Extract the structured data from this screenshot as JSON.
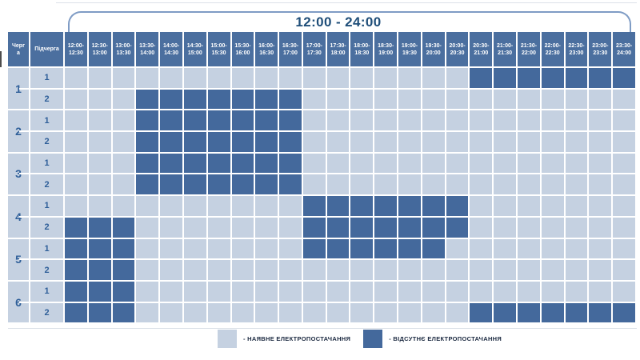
{
  "table": {
    "queue_header": "Черга",
    "subqueue_header": "Підчерга"
  },
  "legend": {
    "available_label": "- НАЯВНЕ ЕЛЕКТРОПОСТАЧАННЯ",
    "outage_label": "- ВІДСУТНЄ ЕЛЕКТРОПОСТАЧАННЯ"
  },
  "colors": {
    "available": "#c5d1e1",
    "outage": "#44699c",
    "header_bg": "#4b6f9f",
    "header_text": "#ffffff",
    "label_text": "#2f5f99",
    "title_text": "#1f4e79",
    "bracket_line": "#7f9cc5",
    "legend_text": "#1b2940"
  },
  "chart_data": {
    "type": "heatmap",
    "title": "12:00 - 24:00",
    "x_categories": [
      "12:00-12:30",
      "12:30-13:00",
      "13:00-13:30",
      "13:30-14:00",
      "14:00-14:30",
      "14:30-15:00",
      "15:00-15:30",
      "15:30-16:00",
      "16:00-16:30",
      "16:30-17:00",
      "17:00-17:30",
      "17:30-18:00",
      "18:00-18:30",
      "18:30-19:00",
      "19:00-19:30",
      "19:30-20:00",
      "20:00-20:30",
      "20:30-21:00",
      "21:00-21:30",
      "21:30-22:00",
      "22:00-22:30",
      "22:30-23:00",
      "23:00-23:30",
      "23:30-24:00"
    ],
    "value_meaning": {
      "0": "наявне електропостачання",
      "1": "відсутнє електропостачання"
    },
    "legend_position": "bottom",
    "rows": [
      {
        "queue": "1",
        "subqueue": "1",
        "outage_intervals": [
          "20:30-24:00"
        ],
        "cells": [
          0,
          0,
          0,
          0,
          0,
          0,
          0,
          0,
          0,
          0,
          0,
          0,
          0,
          0,
          0,
          0,
          0,
          1,
          1,
          1,
          1,
          1,
          1,
          1
        ]
      },
      {
        "queue": "1",
        "subqueue": "2",
        "outage_intervals": [
          "13:30-17:00"
        ],
        "cells": [
          0,
          0,
          0,
          1,
          1,
          1,
          1,
          1,
          1,
          1,
          0,
          0,
          0,
          0,
          0,
          0,
          0,
          0,
          0,
          0,
          0,
          0,
          0,
          0
        ]
      },
      {
        "queue": "2",
        "subqueue": "1",
        "outage_intervals": [
          "13:30-17:00"
        ],
        "cells": [
          0,
          0,
          0,
          1,
          1,
          1,
          1,
          1,
          1,
          1,
          0,
          0,
          0,
          0,
          0,
          0,
          0,
          0,
          0,
          0,
          0,
          0,
          0,
          0
        ]
      },
      {
        "queue": "2",
        "subqueue": "2",
        "outage_intervals": [
          "13:30-17:00"
        ],
        "cells": [
          0,
          0,
          0,
          1,
          1,
          1,
          1,
          1,
          1,
          1,
          0,
          0,
          0,
          0,
          0,
          0,
          0,
          0,
          0,
          0,
          0,
          0,
          0,
          0
        ]
      },
      {
        "queue": "3",
        "subqueue": "1",
        "outage_intervals": [
          "13:30-17:00"
        ],
        "cells": [
          0,
          0,
          0,
          1,
          1,
          1,
          1,
          1,
          1,
          1,
          0,
          0,
          0,
          0,
          0,
          0,
          0,
          0,
          0,
          0,
          0,
          0,
          0,
          0
        ]
      },
      {
        "queue": "3",
        "subqueue": "2",
        "outage_intervals": [
          "13:30-17:00"
        ],
        "cells": [
          0,
          0,
          0,
          1,
          1,
          1,
          1,
          1,
          1,
          1,
          0,
          0,
          0,
          0,
          0,
          0,
          0,
          0,
          0,
          0,
          0,
          0,
          0,
          0
        ]
      },
      {
        "queue": "4",
        "subqueue": "1",
        "outage_intervals": [
          "17:00-20:30"
        ],
        "cells": [
          0,
          0,
          0,
          0,
          0,
          0,
          0,
          0,
          0,
          0,
          1,
          1,
          1,
          1,
          1,
          1,
          1,
          0,
          0,
          0,
          0,
          0,
          0,
          0
        ]
      },
      {
        "queue": "4",
        "subqueue": "2",
        "outage_intervals": [
          "12:00-13:30",
          "17:00-20:30"
        ],
        "cells": [
          1,
          1,
          1,
          0,
          0,
          0,
          0,
          0,
          0,
          0,
          1,
          1,
          1,
          1,
          1,
          1,
          1,
          0,
          0,
          0,
          0,
          0,
          0,
          0
        ]
      },
      {
        "queue": "5",
        "subqueue": "1",
        "outage_intervals": [
          "12:00-13:30",
          "17:00-20:00"
        ],
        "cells": [
          1,
          1,
          1,
          0,
          0,
          0,
          0,
          0,
          0,
          0,
          1,
          1,
          1,
          1,
          1,
          1,
          0,
          0,
          0,
          0,
          0,
          0,
          0,
          0
        ]
      },
      {
        "queue": "5",
        "subqueue": "2",
        "outage_intervals": [
          "12:00-13:30"
        ],
        "cells": [
          1,
          1,
          1,
          0,
          0,
          0,
          0,
          0,
          0,
          0,
          0,
          0,
          0,
          0,
          0,
          0,
          0,
          0,
          0,
          0,
          0,
          0,
          0,
          0
        ]
      },
      {
        "queue": "6",
        "subqueue": "1",
        "outage_intervals": [
          "12:00-13:30"
        ],
        "cells": [
          1,
          1,
          1,
          0,
          0,
          0,
          0,
          0,
          0,
          0,
          0,
          0,
          0,
          0,
          0,
          0,
          0,
          0,
          0,
          0,
          0,
          0,
          0,
          0
        ]
      },
      {
        "queue": "6",
        "subqueue": "2",
        "outage_intervals": [
          "12:00-13:30",
          "20:30-24:00"
        ],
        "cells": [
          1,
          1,
          1,
          0,
          0,
          0,
          0,
          0,
          0,
          0,
          0,
          0,
          0,
          0,
          0,
          0,
          0,
          1,
          1,
          1,
          1,
          1,
          1,
          1
        ]
      }
    ]
  }
}
